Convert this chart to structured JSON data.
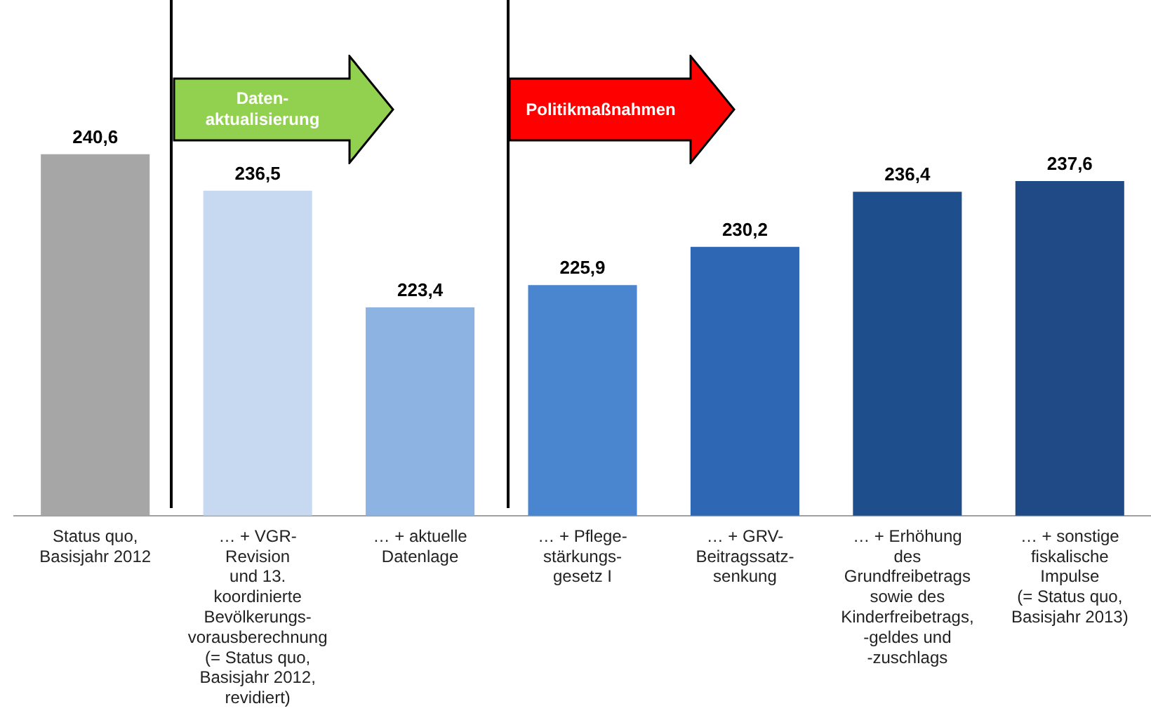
{
  "chart_data": {
    "type": "bar",
    "categories": [
      "Status quo,\nBasisjahr 2012",
      "… + VGR-\nRevision\nund 13.\nkoordinierte\nBevölkerungs-\nvorausberechnung\n(= Status quo,\nBasisjahr 2012,\nrevidiert)",
      "… + aktuelle\nDatenlage",
      "… + Pflege-\nstärkungs-\ngesetz I",
      "… + GRV-\nBeitragssatz-\nsenkung",
      "… + Erhöhung\ndes\nGrundfreibetrags\nsowie des\nKinderfreibetrags,\n-geldes und\n-zuschlags",
      "… + sonstige\nfiskalische\nImpulse\n(= Status quo,\nBasisjahr 2013)"
    ],
    "values": [
      240.6,
      236.5,
      223.4,
      225.9,
      230.2,
      236.4,
      237.6
    ],
    "value_labels": [
      "240,6",
      "236,5",
      "223,4",
      "225,9",
      "230,2",
      "236,4",
      "237,6"
    ],
    "colors": [
      "#a6a6a6",
      "#c6d9f1",
      "#8db3e2",
      "#4a86d0",
      "#2e67b4",
      "#1f4e8c",
      "#1f4a85"
    ],
    "tick_labels": "x",
    "grid": false,
    "legend": false,
    "annotations": [
      "Daten-\naktualisierung",
      "Politikmaßnahmen"
    ]
  }
}
